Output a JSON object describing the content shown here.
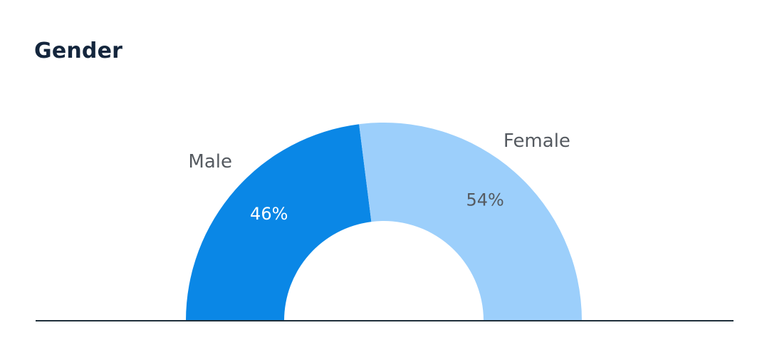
{
  "chart_data": {
    "type": "pie",
    "style": "semi-donut",
    "title": "Gender",
    "slices": [
      {
        "label": "Male",
        "value": 46,
        "value_label": "46%",
        "color": "#0a87e6",
        "text_color": "#ffffff"
      },
      {
        "label": "Female",
        "value": 54,
        "value_label": "54%",
        "color": "#9ccffb",
        "text_color": "#555a60"
      }
    ],
    "axis_line_color": "#1f2f3a"
  }
}
